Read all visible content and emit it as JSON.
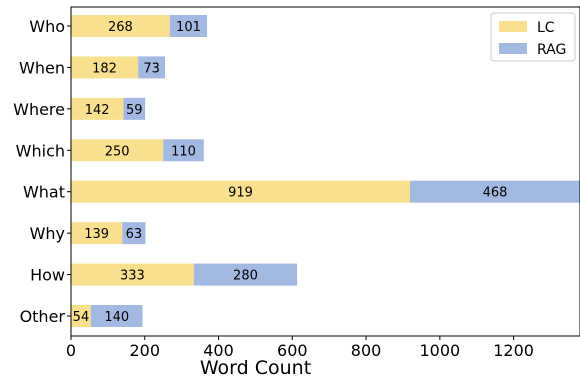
{
  "chart_data": {
    "type": "bar",
    "orientation": "horizontal",
    "stacked": true,
    "categories": [
      "Who",
      "When",
      "Where",
      "Which",
      "What",
      "Why",
      "How",
      "Other"
    ],
    "series": [
      {
        "name": "LC",
        "values": [
          268,
          182,
          142,
          250,
          919,
          139,
          333,
          54
        ],
        "color": "#f9e08e"
      },
      {
        "name": "RAG",
        "values": [
          101,
          73,
          59,
          110,
          468,
          63,
          280,
          140
        ],
        "color": "#a4b9e2"
      }
    ],
    "title": "",
    "xlabel": "Word Count",
    "ylabel": "",
    "xlim": [
      0,
      1380
    ],
    "xticks": [
      0,
      200,
      400,
      600,
      800,
      1000,
      1200
    ],
    "grid": false,
    "legend_position": "top-right"
  }
}
